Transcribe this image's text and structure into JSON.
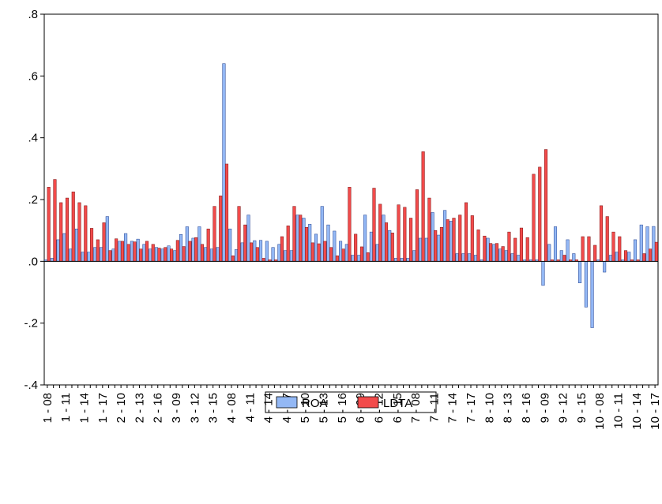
{
  "chart_data": {
    "type": "bar",
    "categories": [
      "1 - 08",
      null,
      null,
      "1 - 11",
      null,
      null,
      "1 - 14",
      null,
      null,
      "1 - 17",
      null,
      null,
      "2 - 10",
      null,
      null,
      "2 - 13",
      null,
      null,
      "2 - 16",
      null,
      null,
      "3 - 09",
      null,
      null,
      "3 - 12",
      null,
      null,
      "3 - 15",
      null,
      null,
      "4 - 08",
      null,
      null,
      "4 - 11",
      null,
      null,
      "4 - 14",
      null,
      null,
      "4 - 17",
      null,
      null,
      "5 - 10",
      null,
      null,
      "5 - 13",
      null,
      null,
      "5 - 16",
      null,
      null,
      "6 - 09",
      null,
      null,
      "6 - 12",
      null,
      null,
      "6 - 15",
      null,
      null,
      "7 - 08",
      null,
      null,
      "7 - 11",
      null,
      null,
      "7 - 14",
      null,
      null,
      "7 - 17",
      null,
      null,
      "8 - 10",
      null,
      null,
      "8 - 13",
      null,
      null,
      "8 - 16",
      null,
      null,
      "9 - 09",
      null,
      null,
      "9 - 12",
      null,
      null,
      "9 - 15",
      null,
      null,
      "10 - 08",
      null,
      null,
      "10 - 11",
      null,
      null,
      "10 - 14",
      null,
      null,
      "10 - 17"
    ],
    "series": [
      {
        "name": "ROA",
        "color": "#93b8f5",
        "values": [
          0.005,
          0.01,
          0.07,
          0.09,
          0.04,
          0.105,
          0.03,
          0.03,
          0.045,
          0.045,
          0.145,
          0.04,
          0.065,
          0.09,
          0.065,
          0.072,
          0.055,
          0.04,
          0.045,
          0.04,
          0.05,
          0.035,
          0.087,
          0.112,
          0.075,
          0.112,
          0.045,
          0.04,
          0.045,
          0.64,
          0.105,
          0.038,
          0.06,
          0.15,
          0.067,
          0.068,
          0.065,
          0.045,
          0.055,
          0.035,
          0.035,
          0.15,
          0.14,
          0.12,
          0.088,
          0.178,
          0.118,
          0.098,
          0.065,
          0.055,
          0.02,
          0.02,
          0.15,
          0.095,
          0.055,
          0.15,
          0.1,
          0.01,
          0.01,
          0.01,
          0.035,
          0.075,
          0.075,
          0.158,
          0.085,
          0.165,
          0.13,
          0.025,
          0.025,
          0.025,
          0.02,
          0.005,
          0.075,
          0.055,
          0.04,
          0.035,
          0.025,
          0.02,
          0.005,
          0.005,
          0.005,
          -0.078,
          0.055,
          0.112,
          0.035,
          0.07,
          0.025,
          -0.07,
          -0.148,
          -0.215,
          0.005,
          -0.035,
          0.02,
          0.03,
          0.005,
          0.03,
          0.07,
          0.118,
          0.112,
          0.113
        ]
      },
      {
        "name": "LDTA",
        "color": "#f24b4b",
        "values": [
          0.24,
          0.265,
          0.19,
          0.205,
          0.225,
          0.19,
          0.18,
          0.107,
          0.07,
          0.125,
          0.035,
          0.073,
          0.065,
          0.055,
          0.063,
          0.04,
          0.065,
          0.055,
          0.043,
          0.045,
          0.04,
          0.068,
          0.048,
          0.065,
          0.077,
          0.055,
          0.105,
          0.178,
          0.212,
          0.315,
          0.018,
          0.178,
          0.118,
          0.06,
          0.045,
          0.01,
          0.005,
          0.005,
          0.08,
          0.115,
          0.178,
          0.15,
          0.11,
          0.06,
          0.057,
          0.065,
          0.045,
          0.018,
          0.04,
          0.24,
          0.088,
          0.047,
          0.028,
          0.237,
          0.185,
          0.125,
          0.092,
          0.183,
          0.175,
          0.14,
          0.232,
          0.355,
          0.205,
          0.1,
          0.11,
          0.135,
          0.14,
          0.15,
          0.19,
          0.148,
          0.102,
          0.082,
          0.058,
          0.058,
          0.048,
          0.095,
          0.075,
          0.108,
          0.077,
          0.282,
          0.305,
          0.362,
          0.005,
          0.005,
          0.02,
          0.005,
          0.005,
          0.08,
          0.08,
          0.052,
          0.18,
          0.145,
          0.095,
          0.08,
          0.035,
          0.005,
          0.005,
          0.025,
          0.04,
          0.062
        ]
      }
    ],
    "ylim": [
      -0.4,
      0.8
    ],
    "yticks": [
      {
        "value": -0.4,
        "label": "-.4"
      },
      {
        "value": -0.2,
        "label": "-.2"
      },
      {
        "value": 0,
        "label": ".0"
      },
      {
        "value": 0.2,
        "label": ".2"
      },
      {
        "value": 0.4,
        "label": ".4"
      },
      {
        "value": 0.6,
        "label": ".6"
      },
      {
        "value": 0.8,
        "label": ".8"
      }
    ]
  }
}
